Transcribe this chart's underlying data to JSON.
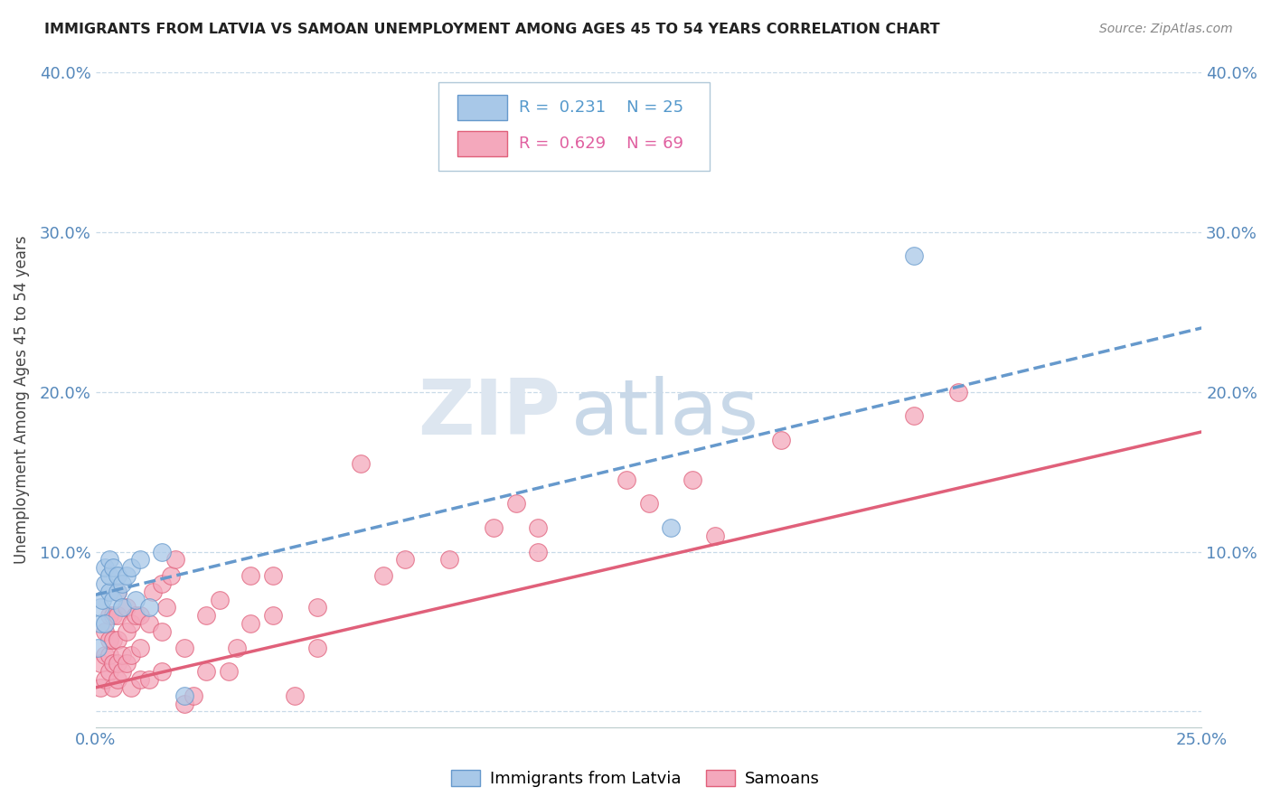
{
  "title": "IMMIGRANTS FROM LATVIA VS SAMOAN UNEMPLOYMENT AMONG AGES 45 TO 54 YEARS CORRELATION CHART",
  "source": "Source: ZipAtlas.com",
  "ylabel": "Unemployment Among Ages 45 to 54 years",
  "xlim": [
    0,
    0.25
  ],
  "ylim": [
    -0.01,
    0.4
  ],
  "xticks": [
    0.0,
    0.05,
    0.1,
    0.15,
    0.2,
    0.25
  ],
  "yticks": [
    0.0,
    0.1,
    0.2,
    0.3,
    0.4
  ],
  "xticklabels": [
    "0.0%",
    "",
    "",
    "",
    "",
    "25.0%"
  ],
  "yticklabels": [
    "",
    "10.0%",
    "20.0%",
    "30.0%",
    "40.0%"
  ],
  "color_latvia": "#a8c8e8",
  "color_samoan": "#f4a8bc",
  "color_latvia_line": "#6699cc",
  "color_samoan_line": "#e0607a",
  "watermark_zip": "ZIP",
  "watermark_atlas": "atlas",
  "latvia_scatter_x": [
    0.0005,
    0.001,
    0.001,
    0.0015,
    0.002,
    0.002,
    0.002,
    0.003,
    0.003,
    0.003,
    0.004,
    0.004,
    0.005,
    0.005,
    0.006,
    0.006,
    0.007,
    0.008,
    0.009,
    0.01,
    0.012,
    0.015,
    0.02,
    0.13,
    0.185
  ],
  "latvia_scatter_y": [
    0.04,
    0.055,
    0.065,
    0.07,
    0.055,
    0.08,
    0.09,
    0.075,
    0.085,
    0.095,
    0.07,
    0.09,
    0.075,
    0.085,
    0.065,
    0.08,
    0.085,
    0.09,
    0.07,
    0.095,
    0.065,
    0.1,
    0.01,
    0.115,
    0.285
  ],
  "samoan_scatter_x": [
    0.001,
    0.001,
    0.002,
    0.002,
    0.002,
    0.003,
    0.003,
    0.003,
    0.003,
    0.004,
    0.004,
    0.004,
    0.004,
    0.005,
    0.005,
    0.005,
    0.005,
    0.005,
    0.006,
    0.006,
    0.007,
    0.007,
    0.007,
    0.008,
    0.008,
    0.008,
    0.009,
    0.01,
    0.01,
    0.01,
    0.012,
    0.012,
    0.013,
    0.015,
    0.015,
    0.015,
    0.016,
    0.017,
    0.018,
    0.02,
    0.02,
    0.022,
    0.025,
    0.025,
    0.028,
    0.03,
    0.032,
    0.035,
    0.035,
    0.04,
    0.04,
    0.045,
    0.05,
    0.05,
    0.06,
    0.065,
    0.07,
    0.08,
    0.09,
    0.095,
    0.1,
    0.1,
    0.12,
    0.125,
    0.135,
    0.14,
    0.155,
    0.185,
    0.195
  ],
  "samoan_scatter_y": [
    0.015,
    0.03,
    0.02,
    0.035,
    0.05,
    0.025,
    0.035,
    0.045,
    0.06,
    0.015,
    0.03,
    0.045,
    0.06,
    0.02,
    0.03,
    0.045,
    0.06,
    0.075,
    0.025,
    0.035,
    0.03,
    0.05,
    0.065,
    0.015,
    0.035,
    0.055,
    0.06,
    0.02,
    0.04,
    0.06,
    0.02,
    0.055,
    0.075,
    0.025,
    0.05,
    0.08,
    0.065,
    0.085,
    0.095,
    0.005,
    0.04,
    0.01,
    0.025,
    0.06,
    0.07,
    0.025,
    0.04,
    0.055,
    0.085,
    0.06,
    0.085,
    0.01,
    0.04,
    0.065,
    0.155,
    0.085,
    0.095,
    0.095,
    0.115,
    0.13,
    0.1,
    0.115,
    0.145,
    0.13,
    0.145,
    0.11,
    0.17,
    0.185,
    0.2
  ],
  "latvia_line_x": [
    0.0,
    0.25
  ],
  "latvia_line_y": [
    0.073,
    0.24
  ],
  "samoan_line_x": [
    0.0,
    0.25
  ],
  "samoan_line_y": [
    0.015,
    0.175
  ]
}
